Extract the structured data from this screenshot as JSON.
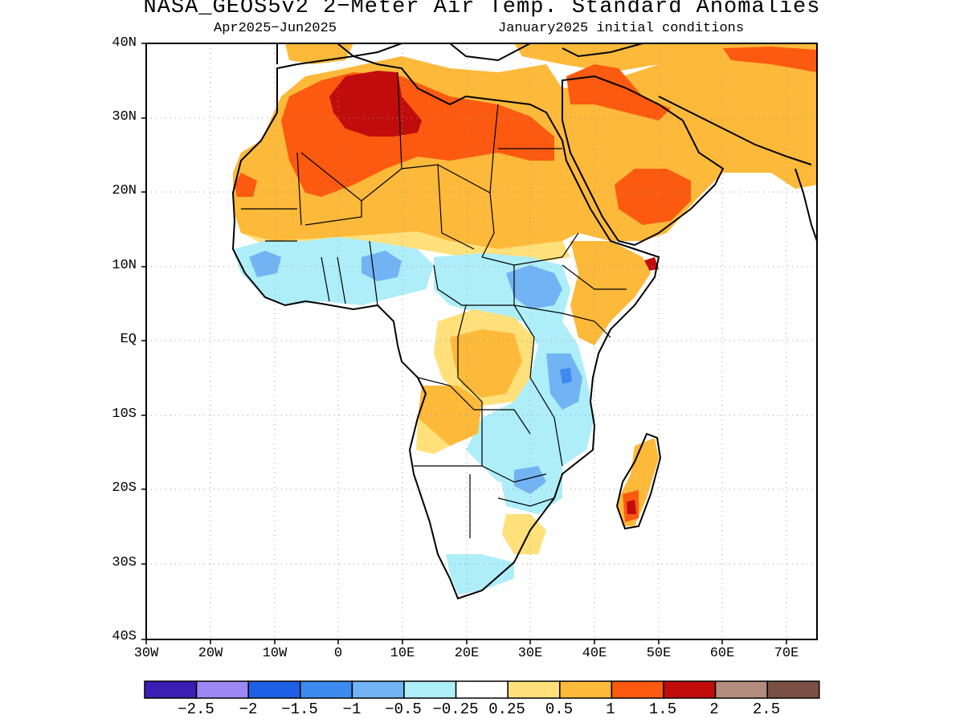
{
  "title": "NASA_GEOS5v2 2−Meter Air Temp. Standard Anomalies",
  "subtitle_left": "Apr2025−Jun2025",
  "subtitle_right": "January2025 initial conditions",
  "map": {
    "lon_range": [
      -30,
      75
    ],
    "lat_range": [
      -40,
      40
    ],
    "lat_ticks": [
      "40N",
      "30N",
      "20N",
      "10N",
      "EQ",
      "10S",
      "20S",
      "30S",
      "40S"
    ],
    "lon_ticks": [
      "30W",
      "20W",
      "10W",
      "0",
      "10E",
      "20E",
      "30E",
      "40E",
      "50E",
      "60E",
      "70E"
    ],
    "grid": true
  },
  "colorbar": {
    "colors": [
      "#3a1fb4",
      "#9b88f5",
      "#1f5fe6",
      "#3d8bef",
      "#72b3f4",
      "#aeeef9",
      "#ffffff",
      "#ffe07a",
      "#fdb93a",
      "#fb5a10",
      "#c10c0c",
      "#b48c7d",
      "#7b5044"
    ],
    "labels": [
      "−2.5",
      "−2",
      "−1.5",
      "−1",
      "−0.5",
      "−0.25",
      "0.25",
      "0.5",
      "1",
      "1.5",
      "2",
      "2.5"
    ]
  }
}
